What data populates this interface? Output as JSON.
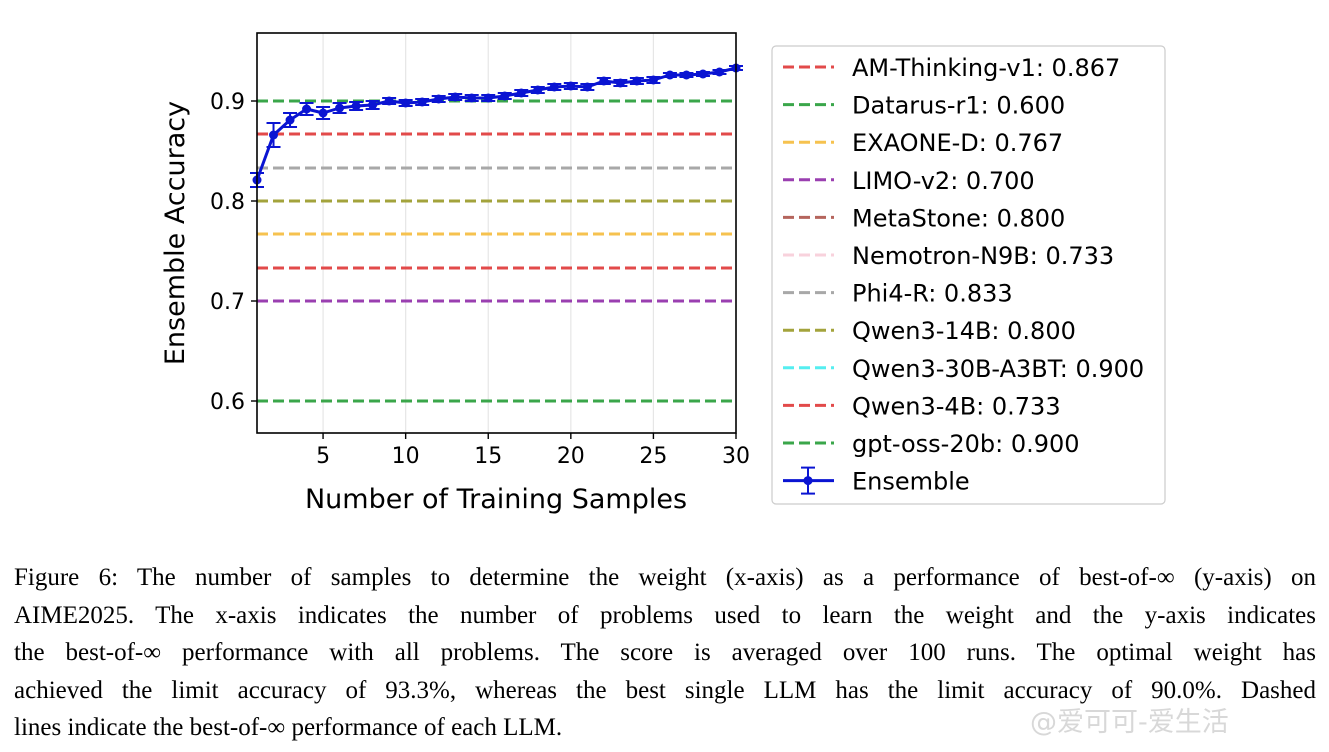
{
  "chart_data": {
    "type": "line",
    "xlabel": "Number of Training Samples",
    "ylabel": "Ensemble Accuracy",
    "xlim": [
      1,
      30
    ],
    "ylim": [
      0.568,
      0.968
    ],
    "xticks": [
      5,
      10,
      15,
      20,
      25,
      30
    ],
    "yticks": [
      0.6,
      0.7,
      0.8,
      0.9
    ],
    "x_grid": true,
    "legend_position": "outside-right",
    "reference_lines": [
      {
        "name": "AM-Thinking-v1: 0.867",
        "value": 0.867,
        "color": "#e24a4a"
      },
      {
        "name": "Datarus-r1: 0.600",
        "value": 0.6,
        "color": "#3aa64a"
      },
      {
        "name": "EXAONE-D: 0.767",
        "value": 0.767,
        "color": "#f6c24f"
      },
      {
        "name": "LIMO-v2: 0.700",
        "value": 0.7,
        "color": "#9a3fb0"
      },
      {
        "name": "MetaStone: 0.800",
        "value": 0.8,
        "color": "#b5655d"
      },
      {
        "name": "Nemotron-N9B: 0.733",
        "value": 0.733,
        "color": "#f8d2dc"
      },
      {
        "name": "Phi4-R: 0.833",
        "value": 0.833,
        "color": "#a8a8a8"
      },
      {
        "name": "Qwen3-14B: 0.800",
        "value": 0.8,
        "color": "#a3a33c"
      },
      {
        "name": "Qwen3-30B-A3BT: 0.900",
        "value": 0.9,
        "color": "#55eef0"
      },
      {
        "name": "Qwen3-4B: 0.733",
        "value": 0.733,
        "color": "#e24a4a"
      },
      {
        "name": "gpt-oss-20b: 0.900",
        "value": 0.9,
        "color": "#3aa64a"
      }
    ],
    "series": [
      {
        "name": "Ensemble",
        "color": "#0a14d2",
        "x": [
          1,
          2,
          3,
          4,
          5,
          6,
          7,
          8,
          9,
          10,
          11,
          12,
          13,
          14,
          15,
          16,
          17,
          18,
          19,
          20,
          21,
          22,
          23,
          24,
          25,
          26,
          27,
          28,
          29,
          30
        ],
        "y": [
          0.821,
          0.866,
          0.881,
          0.892,
          0.888,
          0.893,
          0.895,
          0.896,
          0.9,
          0.898,
          0.899,
          0.902,
          0.904,
          0.903,
          0.903,
          0.905,
          0.908,
          0.911,
          0.914,
          0.915,
          0.914,
          0.92,
          0.918,
          0.92,
          0.921,
          0.926,
          0.926,
          0.927,
          0.929,
          0.933
        ],
        "error": [
          0.007,
          0.012,
          0.007,
          0.006,
          0.006,
          0.005,
          0.004,
          0.004,
          0.003,
          0.003,
          0.003,
          0.003,
          0.003,
          0.003,
          0.003,
          0.003,
          0.003,
          0.003,
          0.003,
          0.003,
          0.003,
          0.003,
          0.003,
          0.003,
          0.003,
          0.002,
          0.002,
          0.002,
          0.002,
          0.002
        ]
      }
    ]
  },
  "caption_lines": [
    "Figure 6: The number of samples to determine the weight (x-axis) as a performance of best-of-∞ (y-axis) on",
    "AIME2025. The x-axis indicates the number of problems used to learn the weight and the y-axis indicates",
    "the best-of-∞ performance with all problems. The score is averaged over 100 runs. The optimal weight has",
    "achieved the limit accuracy of 93.3%, whereas the best single LLM has the limit accuracy of 90.0%. Dashed",
    "lines indicate the best-of-∞ performance of each LLM."
  ],
  "watermark": "@爱可可-爱生活"
}
